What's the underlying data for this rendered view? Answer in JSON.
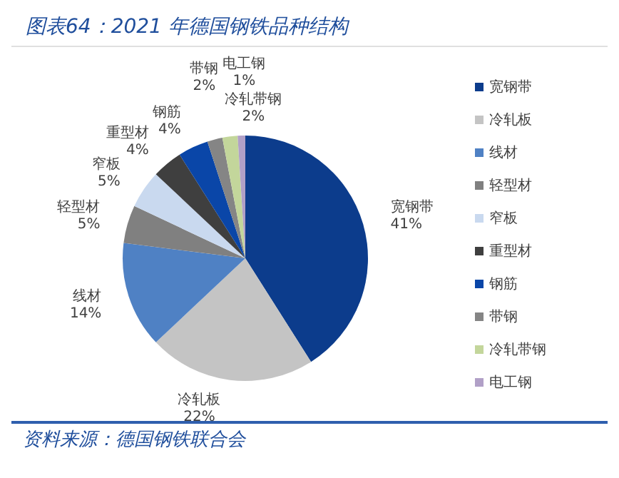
{
  "chart_data": {
    "type": "pie",
    "title": "图表64：2021 年德国钢铁品种结构",
    "categories": [
      "宽钢带",
      "冷轧板",
      "线材",
      "轻型材",
      "窄板",
      "重型材",
      "钢筋",
      "带钢",
      "冷轧带钢",
      "电工钢"
    ],
    "values": [
      41,
      22,
      14,
      5,
      5,
      4,
      4,
      2,
      2,
      1
    ],
    "value_labels": [
      "41%",
      "22%",
      "14%",
      "5%",
      "5%",
      "4%",
      "4%",
      "2%",
      "2%",
      "1%"
    ],
    "colors": [
      "#0c3c8c",
      "#c4c4c4",
      "#4f81c4",
      "#808080",
      "#c9d9ef",
      "#3f3f3f",
      "#0a46a8",
      "#858585",
      "#c3d69b",
      "#b1a0c7"
    ],
    "legend": "right",
    "annotations": [
      "资料来源：德国钢铁联合会"
    ]
  }
}
